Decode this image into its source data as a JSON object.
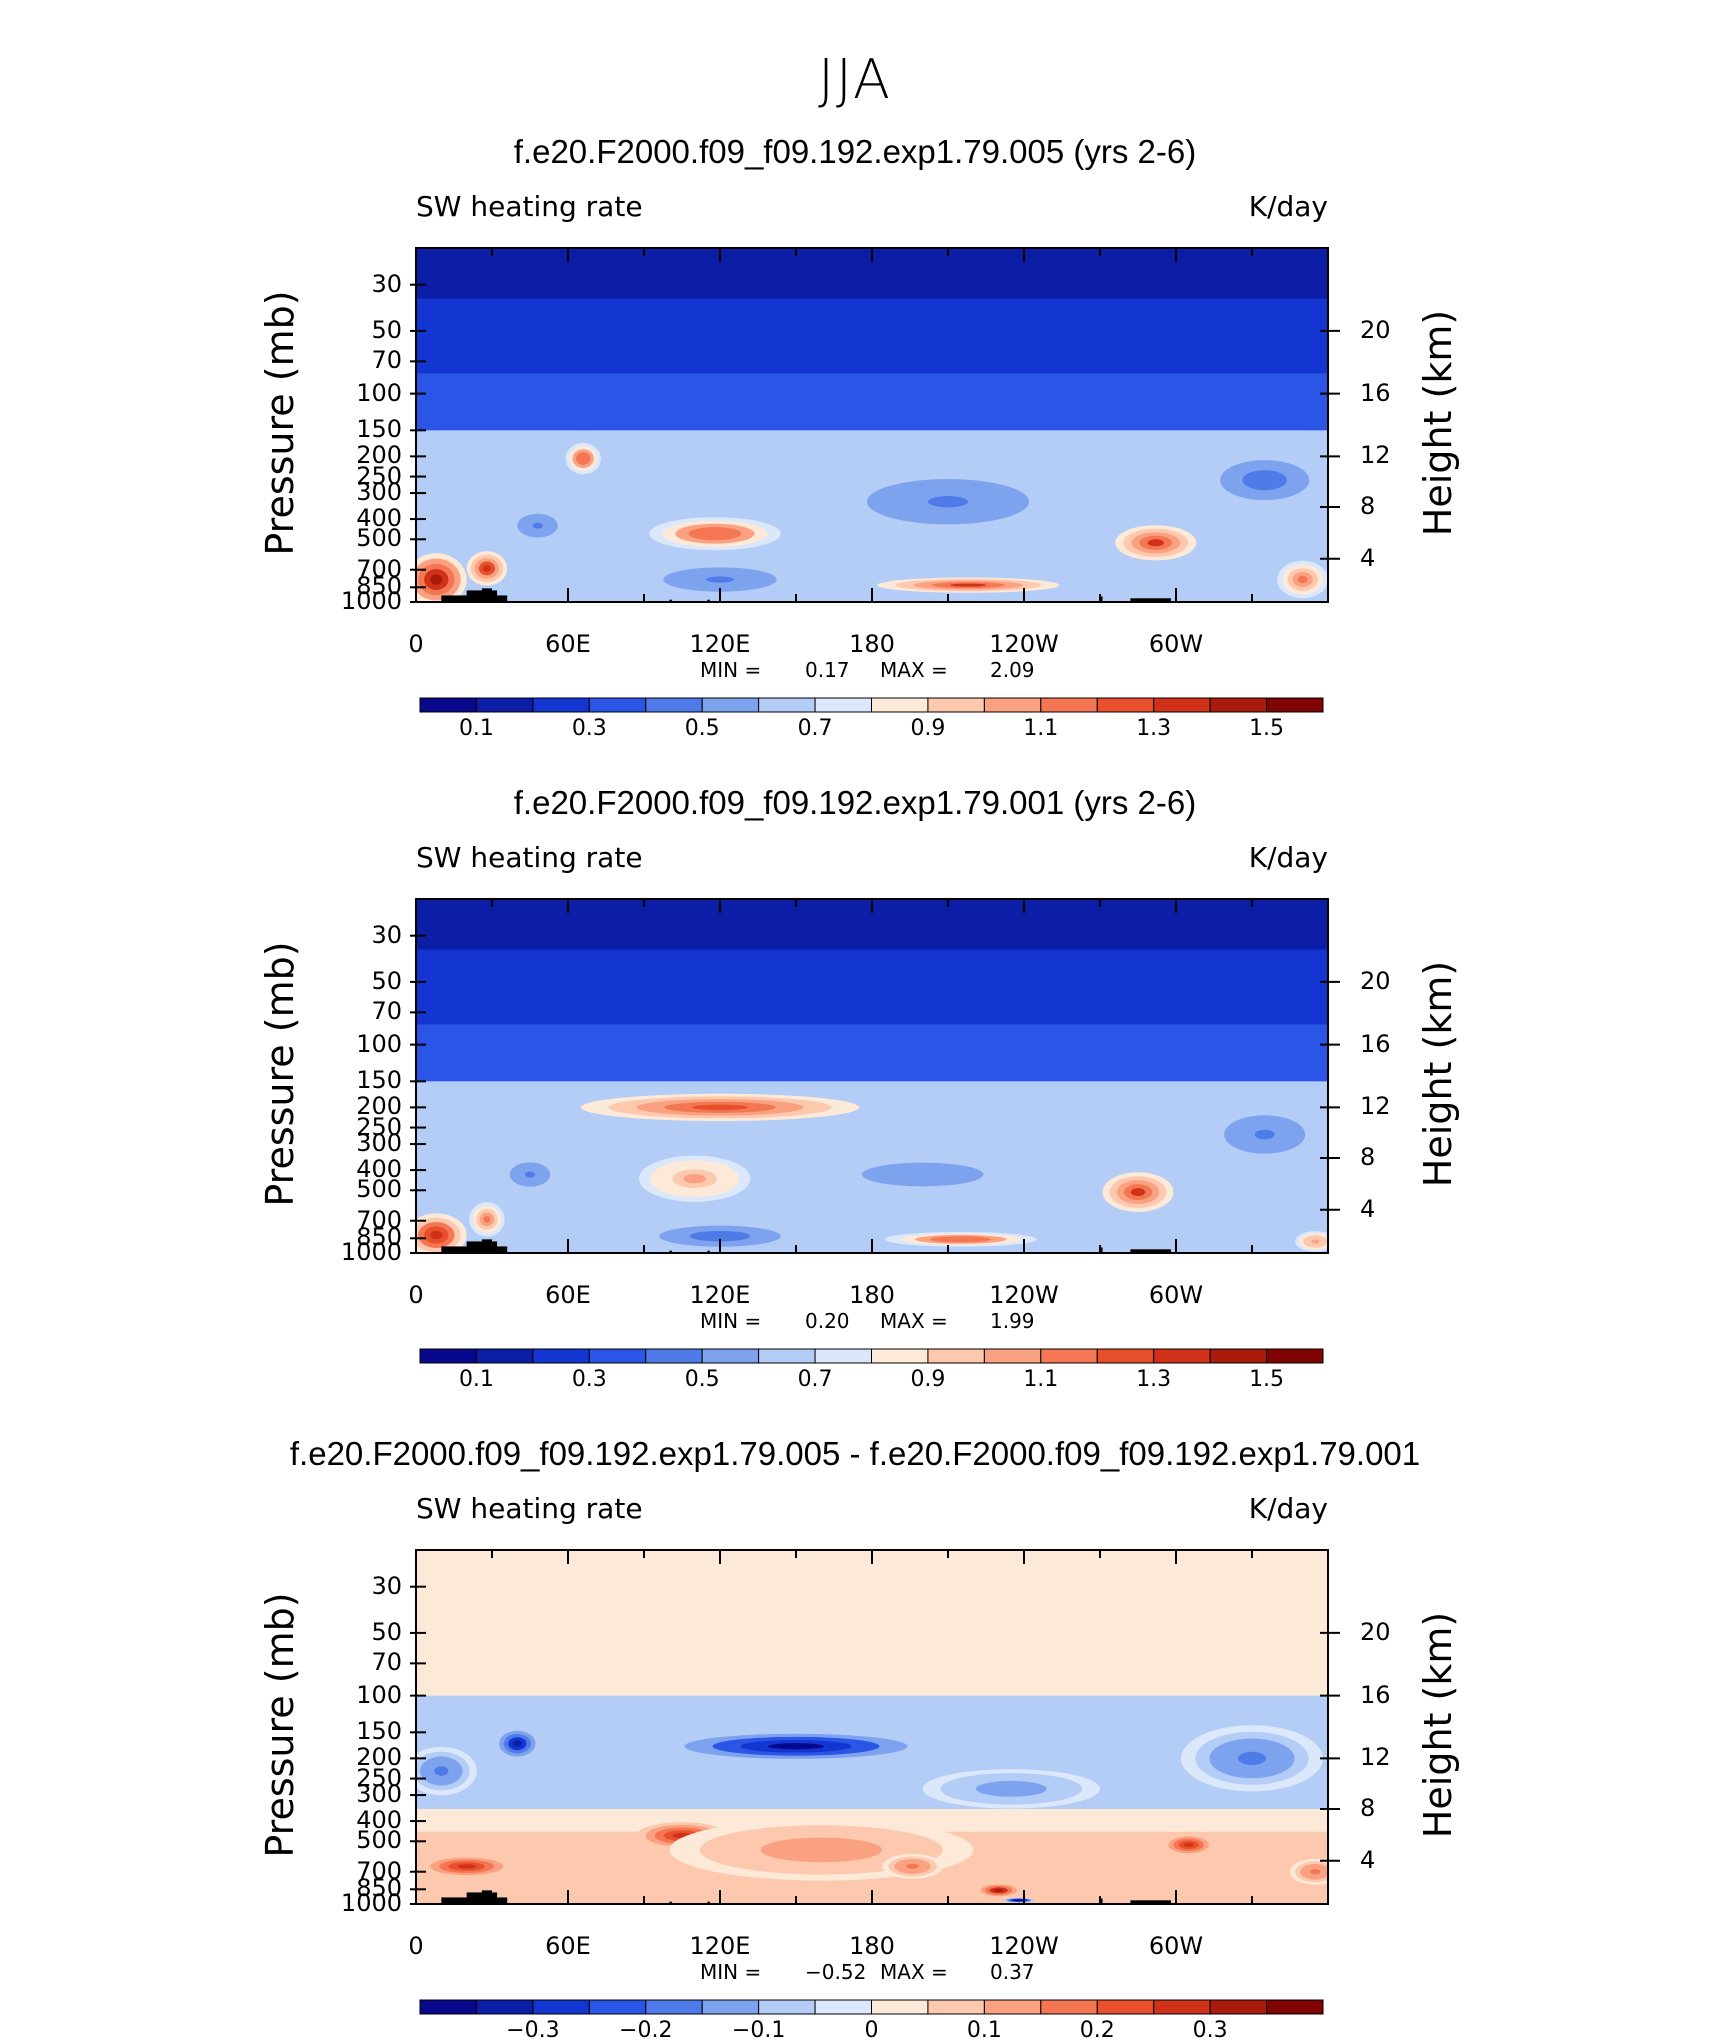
{
  "figure": {
    "title": "JJA",
    "colors": {
      "blues": [
        "#08088c",
        "#0c1ea6",
        "#1336d2",
        "#2a55e6",
        "#4e7be8",
        "#7ea3ee",
        "#b4cdf6",
        "#dbe8fb"
      ],
      "reds": [
        "#fde9d8",
        "#fcc8ae",
        "#f9a181",
        "#f47652",
        "#e8502b",
        "#cf3218",
        "#a91b0b",
        "#800404"
      ],
      "terrain": "#000000"
    }
  },
  "chart_data": [
    {
      "type": "contour",
      "title": "f.e20.F2000.f09_f09.192.exp1.79.005 (yrs 2-6)",
      "left_label": "SW heating rate",
      "right_label": "K/day",
      "ylabel": "Pressure (mb)",
      "ylabel_right": "Height (km)",
      "x_ticks": [
        "0",
        "60E",
        "120E",
        "180",
        "120W",
        "60W"
      ],
      "y_ticks": [
        "30",
        "50",
        "70",
        "100",
        "150",
        "200",
        "250",
        "300",
        "400",
        "500",
        "700",
        "850",
        "1000"
      ],
      "y_ticks_right": [
        "20",
        "16",
        "12",
        "8",
        "4"
      ],
      "stats": {
        "min_label": "MIN =",
        "min": "0.17",
        "max_label": "MAX =",
        "max": "2.09"
      },
      "colorbar_labels": [
        "0.1",
        "0.3",
        "0.5",
        "0.7",
        "0.9",
        "1.1",
        "1.3",
        "1.5"
      ],
      "colorbar_range": [
        0.0,
        1.6
      ],
      "blobs": [
        {
          "lon": 8,
          "p": 780,
          "rx": 12,
          "rp": 220,
          "v": 1.45
        },
        {
          "lon": 28,
          "p": 690,
          "rx": 8,
          "rp": 130,
          "v": 1.35
        },
        {
          "lon": 66,
          "p": 205,
          "rx": 7,
          "rp": 35,
          "v": 1.2
        },
        {
          "lon": 118,
          "p": 470,
          "rx": 26,
          "rp": 85,
          "v": 1.2
        },
        {
          "lon": 218,
          "p": 830,
          "rx": 36,
          "rp": 70,
          "v": 1.3
        },
        {
          "lon": 292,
          "p": 520,
          "rx": 16,
          "rp": 100,
          "v": 1.3
        },
        {
          "lon": 350,
          "p": 780,
          "rx": 10,
          "rp": 160,
          "v": 1.1
        },
        {
          "lon": 48,
          "p": 430,
          "rx": 10,
          "rp": 70,
          "v": 0.45
        },
        {
          "lon": 120,
          "p": 780,
          "rx": 28,
          "rp": 130,
          "v": 0.45
        },
        {
          "lon": 210,
          "p": 330,
          "rx": 40,
          "rp": 100,
          "v": 0.45
        },
        {
          "lon": 335,
          "p": 260,
          "rx": 22,
          "rp": 70,
          "v": 0.4
        }
      ]
    },
    {
      "type": "contour",
      "title": "f.e20.F2000.f09_f09.192.exp1.79.001 (yrs 2-6)",
      "left_label": "SW heating rate",
      "right_label": "K/day",
      "ylabel": "Pressure (mb)",
      "ylabel_right": "Height (km)",
      "x_ticks": [
        "0",
        "60E",
        "120E",
        "180",
        "120W",
        "60W"
      ],
      "y_ticks": [
        "30",
        "50",
        "70",
        "100",
        "150",
        "200",
        "250",
        "300",
        "400",
        "500",
        "700",
        "850",
        "1000"
      ],
      "y_ticks_right": [
        "20",
        "16",
        "12",
        "8",
        "4"
      ],
      "stats": {
        "min_label": "MIN =",
        "min": "0.20",
        "max_label": "MAX =",
        "max": "1.99"
      },
      "colorbar_labels": [
        "0.1",
        "0.3",
        "0.5",
        "0.7",
        "0.9",
        "1.1",
        "1.3",
        "1.5"
      ],
      "colorbar_range": [
        0.0,
        1.6
      ],
      "blobs": [
        {
          "lon": 8,
          "p": 820,
          "rx": 12,
          "rp": 200,
          "v": 1.4
        },
        {
          "lon": 28,
          "p": 690,
          "rx": 7,
          "rp": 130,
          "v": 1.15
        },
        {
          "lon": 120,
          "p": 200,
          "rx": 55,
          "rp": 30,
          "v": 1.25
        },
        {
          "lon": 110,
          "p": 440,
          "rx": 22,
          "rp": 110,
          "v": 1.0
        },
        {
          "lon": 215,
          "p": 860,
          "rx": 30,
          "rp": 70,
          "v": 1.2
        },
        {
          "lon": 285,
          "p": 510,
          "rx": 14,
          "rp": 110,
          "v": 1.3
        },
        {
          "lon": 355,
          "p": 880,
          "rx": 8,
          "rp": 100,
          "v": 1.05
        },
        {
          "lon": 45,
          "p": 420,
          "rx": 10,
          "rp": 70,
          "v": 0.45
        },
        {
          "lon": 120,
          "p": 830,
          "rx": 30,
          "rp": 120,
          "v": 0.4
        },
        {
          "lon": 200,
          "p": 420,
          "rx": 40,
          "rp": 90,
          "v": 0.5
        },
        {
          "lon": 335,
          "p": 270,
          "rx": 20,
          "rp": 70,
          "v": 0.45
        }
      ]
    },
    {
      "type": "contour",
      "title": "f.e20.F2000.f09_f09.192.exp1.79.005 - f.e20.F2000.f09_f09.192.exp1.79.001",
      "left_label": "SW heating rate",
      "right_label": "K/day",
      "ylabel": "Pressure (mb)",
      "ylabel_right": "Height (km)",
      "x_ticks": [
        "0",
        "60E",
        "120E",
        "180",
        "120W",
        "60W"
      ],
      "y_ticks": [
        "30",
        "50",
        "70",
        "100",
        "150",
        "200",
        "250",
        "300",
        "400",
        "500",
        "700",
        "850",
        "1000"
      ],
      "y_ticks_right": [
        "20",
        "16",
        "12",
        "8",
        "4"
      ],
      "stats": {
        "min_label": "MIN =",
        "min": "−0.52",
        "max_label": "MAX =",
        "max": "0.37"
      },
      "colorbar_labels": [
        "−0.3",
        "−0.2",
        "−0.1",
        "0",
        "0.1",
        "0.2",
        "0.3"
      ],
      "colorbar_range": [
        -0.4,
        0.4
      ],
      "blobs": [
        {
          "lon": 150,
          "p": 175,
          "rx": 55,
          "rp": 30,
          "v": -0.36
        },
        {
          "lon": 40,
          "p": 170,
          "rx": 9,
          "rp": 30,
          "v": -0.32
        },
        {
          "lon": 10,
          "p": 230,
          "rx": 14,
          "rp": 60,
          "v": -0.18
        },
        {
          "lon": 330,
          "p": 200,
          "rx": 28,
          "rp": 70,
          "v": -0.18
        },
        {
          "lon": 235,
          "p": 280,
          "rx": 35,
          "rp": 60,
          "v": -0.15
        },
        {
          "lon": 20,
          "p": 660,
          "rx": 18,
          "rp": 80,
          "v": 0.26
        },
        {
          "lon": 105,
          "p": 470,
          "rx": 18,
          "rp": 70,
          "v": 0.25
        },
        {
          "lon": 160,
          "p": 550,
          "rx": 60,
          "rp": 180,
          "v": 0.14
        },
        {
          "lon": 196,
          "p": 660,
          "rx": 12,
          "rp": 90,
          "v": 0.18
        },
        {
          "lon": 230,
          "p": 860,
          "rx": 9,
          "rp": 70,
          "v": 0.33
        },
        {
          "lon": 238,
          "p": 960,
          "rx": 6,
          "rp": 25,
          "v": -0.45
        },
        {
          "lon": 305,
          "p": 520,
          "rx": 10,
          "rp": 60,
          "v": 0.25
        },
        {
          "lon": 355,
          "p": 700,
          "rx": 10,
          "rp": 100,
          "v": 0.18
        }
      ]
    }
  ]
}
